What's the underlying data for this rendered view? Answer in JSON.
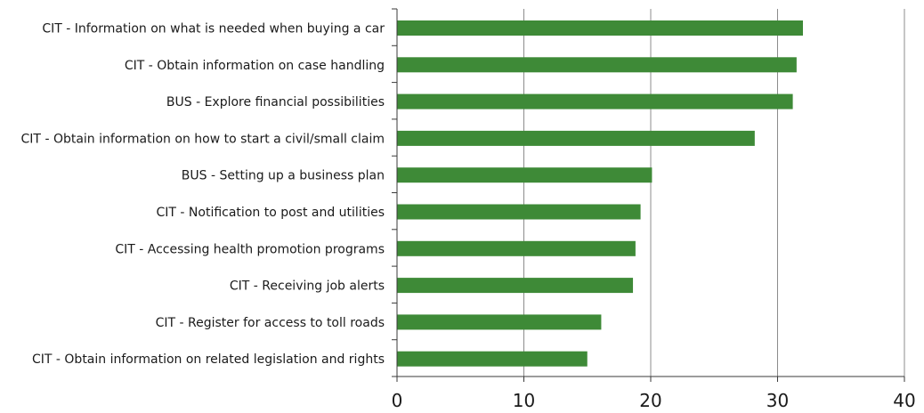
{
  "chart_data": {
    "type": "bar",
    "orientation": "horizontal",
    "categories": [
      "CIT - Information on what is needed when buying a car",
      "CIT - Obtain information on case handling",
      "BUS - Explore financial possibilities",
      "CIT - Obtain information on how to start a civil/small claim",
      "BUS - Setting up a business plan",
      "CIT - Notification to post and utilities",
      "CIT - Accessing health promotion programs",
      "CIT - Receiving job alerts",
      "CIT - Register for access to toll roads",
      "CIT - Obtain information on related legislation and rights"
    ],
    "values": [
      32,
      31.5,
      31.2,
      28.2,
      20.1,
      19.2,
      18.8,
      18.6,
      16.1,
      15.0
    ],
    "xlim": [
      0,
      40
    ],
    "xticks": [
      "0",
      "10",
      "20",
      "30",
      "40"
    ],
    "grid": "vertical",
    "legend": "none",
    "bar_color": "#3e8a37"
  }
}
